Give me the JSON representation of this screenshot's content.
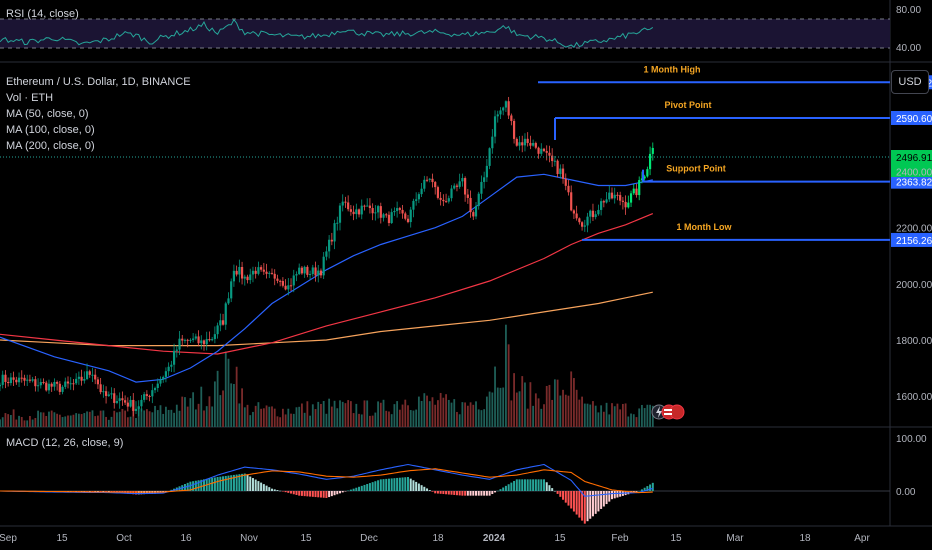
{
  "header": {
    "symbol": "Ethereum / U.S. Dollar, 1D, BINANCE",
    "vol": "Vol · ETH",
    "ma50": "MA (50, close, 0)",
    "ma100": "MA (100, close, 0)",
    "ma200": "MA (200, close, 0)",
    "currency_button": "USD"
  },
  "rsi_pane": {
    "label": "RSI (14, close)",
    "ticks": [
      "80.00",
      "40.00"
    ]
  },
  "macd_pane": {
    "label": "MACD (12, 26, close, 9)",
    "ticks": [
      "100.00",
      "0.00"
    ]
  },
  "time_axis": [
    "Sep",
    "15",
    "Oct",
    "16",
    "Nov",
    "15",
    "Dec",
    "18",
    "2024",
    "15",
    "Feb",
    "15",
    "Mar",
    "18",
    "Apr"
  ],
  "colors": {
    "up": "#26a69a",
    "down": "#ef5350",
    "candle_up": "#089981",
    "candle_up_bright": "#00e676",
    "ma50": "#2962ff",
    "ma100": "#f23645",
    "ma200": "#f7a35c",
    "levels": "#2962ff",
    "annotation": "#f5a623"
  },
  "chart_data": {
    "type": "candlestick",
    "y_ticks": [
      1600,
      1800,
      2000,
      2200,
      2400
    ],
    "ylim": [
      1490,
      2790
    ],
    "levels": [
      {
        "name": "1 Month High",
        "value": 2717.82,
        "label": "2717.82"
      },
      {
        "name": "Pivot Point",
        "value": 2590.6,
        "label": "2590.60"
      },
      {
        "name": "Support Point",
        "value": 2363.82,
        "label": "2363.82"
      },
      {
        "name": "1 Month Low",
        "value": 2156.26,
        "label": "2156.26"
      }
    ],
    "last_price": "2496.91",
    "candle_anchors": [
      [
        0,
        1660
      ],
      [
        8,
        1655
      ],
      [
        16,
        1640
      ],
      [
        22,
        1630
      ],
      [
        28,
        1645
      ],
      [
        34,
        1690
      ],
      [
        38,
        1600
      ],
      [
        44,
        1590
      ],
      [
        50,
        1560
      ],
      [
        54,
        1600
      ],
      [
        58,
        1650
      ],
      [
        62,
        1700
      ],
      [
        66,
        1790
      ],
      [
        70,
        1800
      ],
      [
        74,
        1790
      ],
      [
        78,
        1810
      ],
      [
        82,
        1870
      ],
      [
        86,
        2060
      ],
      [
        90,
        2020
      ],
      [
        94,
        2050
      ],
      [
        98,
        2020
      ],
      [
        102,
        2030
      ],
      [
        106,
        1990
      ],
      [
        110,
        2050
      ],
      [
        114,
        2040
      ],
      [
        118,
        2050
      ],
      [
        122,
        2170
      ],
      [
        126,
        2290
      ],
      [
        130,
        2260
      ],
      [
        134,
        2270
      ],
      [
        138,
        2270
      ],
      [
        142,
        2230
      ],
      [
        146,
        2250
      ],
      [
        150,
        2230
      ],
      [
        154,
        2330
      ],
      [
        158,
        2380
      ],
      [
        162,
        2290
      ],
      [
        166,
        2320
      ],
      [
        170,
        2360
      ],
      [
        174,
        2240
      ],
      [
        178,
        2380
      ],
      [
        182,
        2590
      ],
      [
        186,
        2640
      ],
      [
        190,
        2500
      ],
      [
        194,
        2510
      ],
      [
        198,
        2480
      ],
      [
        202,
        2440
      ],
      [
        206,
        2400
      ],
      [
        210,
        2280
      ],
      [
        214,
        2220
      ],
      [
        218,
        2250
      ],
      [
        222,
        2300
      ],
      [
        226,
        2310
      ],
      [
        230,
        2290
      ],
      [
        234,
        2330
      ],
      [
        238,
        2420
      ],
      [
        240,
        2497
      ]
    ],
    "ma50": [
      [
        0,
        1810
      ],
      [
        20,
        1740
      ],
      [
        40,
        1690
      ],
      [
        50,
        1650
      ],
      [
        60,
        1660
      ],
      [
        70,
        1700
      ],
      [
        80,
        1760
      ],
      [
        90,
        1840
      ],
      [
        100,
        1930
      ],
      [
        110,
        1990
      ],
      [
        120,
        2050
      ],
      [
        130,
        2100
      ],
      [
        140,
        2140
      ],
      [
        150,
        2170
      ],
      [
        160,
        2200
      ],
      [
        170,
        2240
      ],
      [
        180,
        2310
      ],
      [
        190,
        2380
      ],
      [
        200,
        2390
      ],
      [
        210,
        2370
      ],
      [
        220,
        2350
      ],
      [
        230,
        2350
      ],
      [
        240,
        2370
      ]
    ],
    "ma100": [
      [
        0,
        1820
      ],
      [
        20,
        1800
      ],
      [
        40,
        1780
      ],
      [
        60,
        1760
      ],
      [
        80,
        1750
      ],
      [
        100,
        1790
      ],
      [
        120,
        1850
      ],
      [
        140,
        1900
      ],
      [
        160,
        1950
      ],
      [
        180,
        2010
      ],
      [
        200,
        2090
      ],
      [
        210,
        2140
      ],
      [
        220,
        2180
      ],
      [
        230,
        2210
      ],
      [
        240,
        2250
      ]
    ],
    "ma200": [
      [
        0,
        1800
      ],
      [
        20,
        1790
      ],
      [
        40,
        1780
      ],
      [
        60,
        1780
      ],
      [
        80,
        1780
      ],
      [
        100,
        1790
      ],
      [
        120,
        1800
      ],
      [
        140,
        1830
      ],
      [
        160,
        1850
      ],
      [
        180,
        1870
      ],
      [
        200,
        1900
      ],
      [
        220,
        1930
      ],
      [
        240,
        1970
      ]
    ],
    "volume_shape": [
      [
        0,
        15
      ],
      [
        20,
        14
      ],
      [
        40,
        14
      ],
      [
        60,
        20
      ],
      [
        70,
        30
      ],
      [
        76,
        38
      ],
      [
        80,
        50
      ],
      [
        86,
        80
      ],
      [
        90,
        22
      ],
      [
        104,
        20
      ],
      [
        120,
        25
      ],
      [
        140,
        22
      ],
      [
        150,
        35
      ],
      [
        170,
        25
      ],
      [
        178,
        35
      ],
      [
        186,
        95
      ],
      [
        188,
        55
      ],
      [
        196,
        35
      ],
      [
        210,
        50
      ],
      [
        215,
        22
      ],
      [
        230,
        22
      ],
      [
        240,
        20
      ]
    ],
    "rsi_shape": [
      [
        0,
        52
      ],
      [
        10,
        48
      ],
      [
        20,
        54
      ],
      [
        30,
        45
      ],
      [
        40,
        52
      ],
      [
        45,
        60
      ],
      [
        50,
        58
      ],
      [
        55,
        48
      ],
      [
        60,
        55
      ],
      [
        70,
        65
      ],
      [
        75,
        72
      ],
      [
        80,
        60
      ],
      [
        86,
        76
      ],
      [
        90,
        62
      ],
      [
        100,
        58
      ],
      [
        110,
        55
      ],
      [
        120,
        58
      ],
      [
        126,
        66
      ],
      [
        130,
        62
      ],
      [
        140,
        58
      ],
      [
        150,
        60
      ],
      [
        160,
        62
      ],
      [
        170,
        58
      ],
      [
        180,
        62
      ],
      [
        186,
        70
      ],
      [
        190,
        58
      ],
      [
        200,
        54
      ],
      [
        210,
        42
      ],
      [
        215,
        46
      ],
      [
        225,
        52
      ],
      [
        235,
        62
      ],
      [
        240,
        66
      ]
    ],
    "macd_shape": [
      [
        0,
        0
      ],
      [
        20,
        -2
      ],
      [
        40,
        -3
      ],
      [
        50,
        -5
      ],
      [
        60,
        -4
      ],
      [
        70,
        10
      ],
      [
        80,
        30
      ],
      [
        90,
        45
      ],
      [
        100,
        40
      ],
      [
        110,
        32
      ],
      [
        120,
        22
      ],
      [
        130,
        28
      ],
      [
        140,
        40
      ],
      [
        150,
        50
      ],
      [
        160,
        40
      ],
      [
        170,
        30
      ],
      [
        180,
        22
      ],
      [
        190,
        40
      ],
      [
        200,
        50
      ],
      [
        210,
        20
      ],
      [
        215,
        -10
      ],
      [
        225,
        -5
      ],
      [
        235,
        -3
      ],
      [
        240,
        5
      ]
    ],
    "signal_shape": [
      [
        0,
        0
      ],
      [
        20,
        -1
      ],
      [
        40,
        -2
      ],
      [
        60,
        -2
      ],
      [
        70,
        2
      ],
      [
        80,
        18
      ],
      [
        90,
        30
      ],
      [
        100,
        38
      ],
      [
        110,
        36
      ],
      [
        120,
        28
      ],
      [
        130,
        26
      ],
      [
        140,
        30
      ],
      [
        150,
        38
      ],
      [
        160,
        42
      ],
      [
        170,
        34
      ],
      [
        180,
        26
      ],
      [
        190,
        30
      ],
      [
        200,
        40
      ],
      [
        210,
        35
      ],
      [
        215,
        18
      ],
      [
        225,
        2
      ],
      [
        235,
        -3
      ],
      [
        240,
        -2
      ]
    ]
  }
}
